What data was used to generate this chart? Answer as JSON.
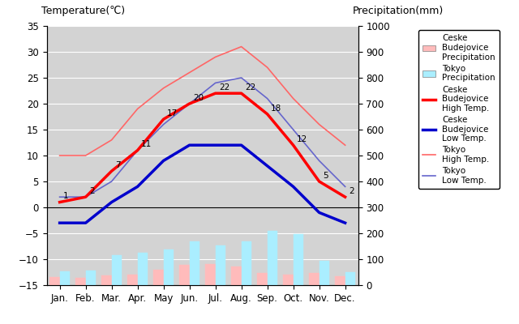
{
  "months": [
    "Jan.",
    "Feb.",
    "Mar.",
    "Apr.",
    "May",
    "Jun.",
    "Jul.",
    "Aug.",
    "Sep.",
    "Oct.",
    "Nov.",
    "Dec."
  ],
  "month_indices": [
    0,
    1,
    2,
    3,
    4,
    5,
    6,
    7,
    8,
    9,
    10,
    11
  ],
  "ceske_high": [
    1,
    2,
    7,
    11,
    17,
    20,
    22,
    22,
    18,
    12,
    5,
    2
  ],
  "ceske_low": [
    -3,
    -3,
    1,
    4,
    9,
    12,
    12,
    12,
    8,
    4,
    -1,
    -3
  ],
  "tokyo_high": [
    10,
    10,
    13,
    19,
    23,
    26,
    29,
    31,
    27,
    21,
    16,
    12
  ],
  "tokyo_low": [
    2,
    2,
    5,
    11,
    16,
    20,
    24,
    25,
    21,
    15,
    9,
    4
  ],
  "ceske_precip_mm": [
    31,
    27,
    37,
    40,
    60,
    77,
    80,
    73,
    48,
    41,
    46,
    34
  ],
  "tokyo_precip_mm": [
    52,
    56,
    117,
    125,
    138,
    168,
    154,
    168,
    210,
    198,
    93,
    51
  ],
  "ceske_high_labels": [
    "1",
    "2",
    "7",
    "11",
    "17",
    "20",
    "22",
    "22",
    "18",
    "12",
    "5",
    "2"
  ],
  "bg_color": "#d3d3d3",
  "title_left": "Temperature(℃)",
  "title_right": "Precipitation(mm)",
  "ylim_temp": [
    -15,
    35
  ],
  "ylim_precip": [
    0,
    1000
  ],
  "ceske_high_color": "#ff0000",
  "ceske_low_color": "#0000cc",
  "tokyo_high_color": "#ff6666",
  "tokyo_low_color": "#6666cc",
  "ceske_precip_color": "#ffbbbb",
  "tokyo_precip_color": "#aaeeff",
  "figsize": [
    6.4,
    4.0
  ],
  "dpi": 100
}
